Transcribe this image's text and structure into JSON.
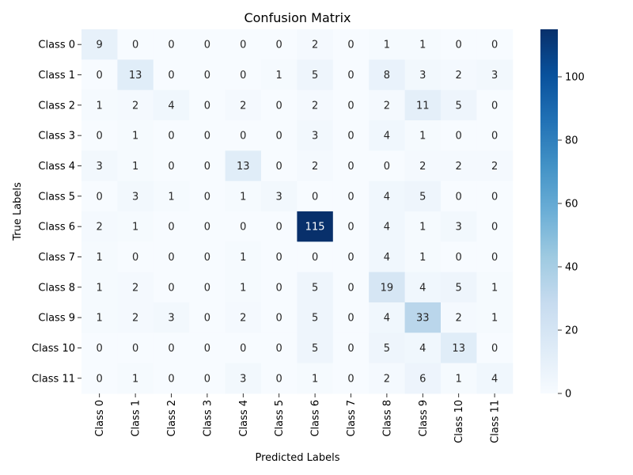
{
  "chart_data": {
    "type": "heatmap",
    "title": "Confusion Matrix",
    "xlabel": "Predicted Labels",
    "ylabel": "True Labels",
    "x_categories": [
      "Class 0",
      "Class 1",
      "Class 2",
      "Class 3",
      "Class 4",
      "Class 5",
      "Class 6",
      "Class 7",
      "Class 8",
      "Class 9",
      "Class 10",
      "Class 11"
    ],
    "y_categories": [
      "Class 0",
      "Class 1",
      "Class 2",
      "Class 3",
      "Class 4",
      "Class 5",
      "Class 6",
      "Class 7",
      "Class 8",
      "Class 9",
      "Class 10",
      "Class 11"
    ],
    "values": [
      [
        9,
        0,
        0,
        0,
        0,
        0,
        2,
        0,
        1,
        1,
        0,
        0
      ],
      [
        0,
        13,
        0,
        0,
        0,
        1,
        5,
        0,
        8,
        3,
        2,
        3
      ],
      [
        1,
        2,
        4,
        0,
        2,
        0,
        2,
        0,
        2,
        11,
        5,
        0
      ],
      [
        0,
        1,
        0,
        0,
        0,
        0,
        3,
        0,
        4,
        1,
        0,
        0
      ],
      [
        3,
        1,
        0,
        0,
        13,
        0,
        2,
        0,
        0,
        2,
        2,
        2
      ],
      [
        0,
        3,
        1,
        0,
        1,
        3,
        0,
        0,
        4,
        5,
        0,
        0
      ],
      [
        2,
        1,
        0,
        0,
        0,
        0,
        115,
        0,
        4,
        1,
        3,
        0
      ],
      [
        1,
        0,
        0,
        0,
        1,
        0,
        0,
        0,
        4,
        1,
        0,
        0
      ],
      [
        1,
        2,
        0,
        0,
        1,
        0,
        5,
        0,
        19,
        4,
        5,
        1
      ],
      [
        1,
        2,
        3,
        0,
        2,
        0,
        5,
        0,
        4,
        33,
        2,
        1
      ],
      [
        0,
        0,
        0,
        0,
        0,
        0,
        5,
        0,
        5,
        4,
        13,
        0
      ],
      [
        0,
        1,
        0,
        0,
        3,
        0,
        1,
        0,
        2,
        6,
        1,
        4
      ]
    ],
    "colormap": "Blues",
    "colorbar": {
      "min": 0,
      "max": 115,
      "ticks": [
        0,
        20,
        40,
        60,
        80,
        100
      ]
    },
    "colors": {
      "low": "#f7fbff",
      "high": "#08306b",
      "text_dark": "#262626",
      "text_light": "#ffffff"
    }
  }
}
